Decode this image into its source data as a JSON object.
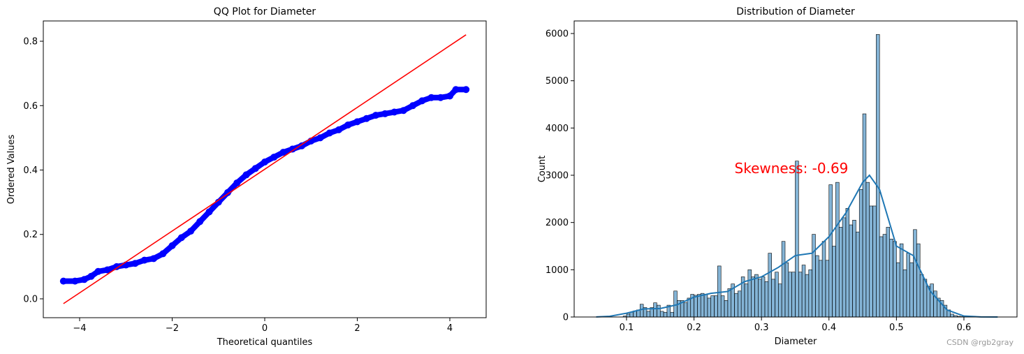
{
  "chart_data": [
    {
      "type": "scatter",
      "title": "QQ Plot for Diameter",
      "x_label": "Theoretical quantiles",
      "y_label": "Ordered Values",
      "xlim": [
        -4.785,
        4.785
      ],
      "ylim": [
        -0.0586,
        0.863
      ],
      "xticks": [
        {
          "value": -4,
          "label": "−4"
        },
        {
          "value": -2,
          "label": "−2"
        },
        0,
        2,
        4
      ],
      "yticks": [
        {
          "value": 0,
          "label": "0.0"
        },
        0.2,
        0.4,
        0.6,
        0.8
      ],
      "series": [
        {
          "color": "#0000ff",
          "x": [
            -4.35,
            -4.1,
            -3.9,
            -3.75,
            -3.6,
            -3.4,
            -3.2,
            -3.0,
            -2.8,
            -2.6,
            -2.4,
            -2.2,
            -2.0,
            -1.8,
            -1.6,
            -1.4,
            -1.2,
            -1.0,
            -0.8,
            -0.6,
            -0.4,
            -0.2,
            0,
            0.2,
            0.4,
            0.6,
            0.8,
            1.0,
            1.2,
            1.4,
            1.6,
            1.8,
            2.0,
            2.2,
            2.4,
            2.6,
            2.8,
            3.0,
            3.2,
            3.4,
            3.6,
            3.8,
            4.0,
            4.13,
            4.35
          ],
          "values": [
            0.055,
            0.055,
            0.06,
            0.07,
            0.085,
            0.09,
            0.1,
            0.105,
            0.11,
            0.12,
            0.125,
            0.14,
            0.165,
            0.19,
            0.21,
            0.24,
            0.27,
            0.3,
            0.33,
            0.36,
            0.385,
            0.405,
            0.425,
            0.44,
            0.455,
            0.465,
            0.475,
            0.49,
            0.5,
            0.515,
            0.525,
            0.54,
            0.55,
            0.56,
            0.57,
            0.575,
            0.58,
            0.585,
            0.6,
            0.615,
            0.625,
            0.625,
            0.63,
            0.65,
            0.65
          ]
        }
      ],
      "fit_line": {
        "color": "#ff0000",
        "x": [
          -4.35,
          4.35
        ],
        "values": [
          -0.015,
          0.82
        ]
      }
    },
    {
      "type": "histogram",
      "title": "Distribution of Diameter",
      "x_label": "Diameter",
      "y_label": "Count",
      "xlim": [
        0.0224,
        0.6787
      ],
      "ylim": [
        0,
        6266
      ],
      "xticks": [
        0.1,
        0.2,
        0.3,
        0.4,
        0.5,
        0.6
      ],
      "yticks": [
        0,
        1000,
        2000,
        3000,
        4000,
        5000,
        6000
      ],
      "color": "#1f77b4",
      "bins": [
        0.055,
        0.06,
        0.065,
        0.07,
        0.075,
        0.08,
        0.085,
        0.09,
        0.095,
        0.1,
        0.105,
        0.11,
        0.115,
        0.12,
        0.125,
        0.13,
        0.135,
        0.14,
        0.145,
        0.15,
        0.155,
        0.16,
        0.165,
        0.17,
        0.175,
        0.18,
        0.185,
        0.19,
        0.195,
        0.2,
        0.205,
        0.21,
        0.215,
        0.22,
        0.225,
        0.23,
        0.235,
        0.24,
        0.245,
        0.25,
        0.255,
        0.26,
        0.265,
        0.27,
        0.275,
        0.28,
        0.285,
        0.29,
        0.295,
        0.3,
        0.305,
        0.31,
        0.315,
        0.32,
        0.325,
        0.33,
        0.335,
        0.34,
        0.345,
        0.35,
        0.355,
        0.36,
        0.365,
        0.37,
        0.375,
        0.38,
        0.385,
        0.39,
        0.395,
        0.4,
        0.405,
        0.41,
        0.415,
        0.42,
        0.425,
        0.43,
        0.435,
        0.44,
        0.445,
        0.45,
        0.455,
        0.46,
        0.465,
        0.47,
        0.475,
        0.48,
        0.485,
        0.49,
        0.495,
        0.5,
        0.505,
        0.51,
        0.515,
        0.52,
        0.525,
        0.53,
        0.535,
        0.54,
        0.545,
        0.55,
        0.555,
        0.56,
        0.565,
        0.57,
        0.575,
        0.58,
        0.585,
        0.59,
        0.595,
        0.6,
        0.605,
        0.61,
        0.615,
        0.62,
        0.625,
        0.63,
        0.635,
        0.64,
        0.645,
        0.65
      ],
      "counts": [
        0,
        0,
        0,
        0,
        0,
        0,
        0,
        0,
        20,
        60,
        100,
        130,
        150,
        270,
        200,
        120,
        200,
        300,
        250,
        120,
        100,
        250,
        100,
        550,
        350,
        350,
        300,
        400,
        480,
        460,
        480,
        500,
        480,
        400,
        450,
        450,
        1080,
        450,
        350,
        600,
        700,
        500,
        550,
        850,
        700,
        1000,
        850,
        900,
        800,
        850,
        750,
        1350,
        800,
        950,
        700,
        1600,
        1150,
        950,
        950,
        3300,
        950,
        1100,
        900,
        1000,
        1750,
        1300,
        1200,
        1600,
        1200,
        2800,
        1500,
        2850,
        1900,
        2100,
        2300,
        1950,
        2050,
        1800,
        2700,
        4300,
        2850,
        2350,
        2350,
        5980,
        1700,
        1750,
        1900,
        1650,
        1600,
        1150,
        1550,
        1000,
        1350,
        1150,
        1850,
        1550,
        900,
        800,
        650,
        700,
        550,
        400,
        350,
        250,
        150,
        60,
        30,
        15,
        8,
        3,
        1,
        0,
        0,
        0,
        0,
        0,
        0,
        0,
        2
      ],
      "kde": {
        "color": "#1f77b4",
        "x": [
          0.055,
          0.075,
          0.1,
          0.125,
          0.15,
          0.175,
          0.2,
          0.225,
          0.25,
          0.275,
          0.3,
          0.325,
          0.35,
          0.375,
          0.4,
          0.425,
          0.45,
          0.46,
          0.475,
          0.5,
          0.525,
          0.55,
          0.575,
          0.6,
          0.625,
          0.65
        ],
        "values": [
          2,
          15,
          80,
          170,
          180,
          260,
          420,
          500,
          540,
          750,
          850,
          1050,
          1300,
          1350,
          1700,
          2200,
          2850,
          3000,
          2700,
          1500,
          1300,
          550,
          150,
          20,
          2,
          0
        ]
      },
      "annotation": {
        "text": "Skewness: -0.69",
        "x": 0.26,
        "y": 3000,
        "color": "#ff0000"
      }
    }
  ],
  "watermark": "CSDN @rgb2gray"
}
